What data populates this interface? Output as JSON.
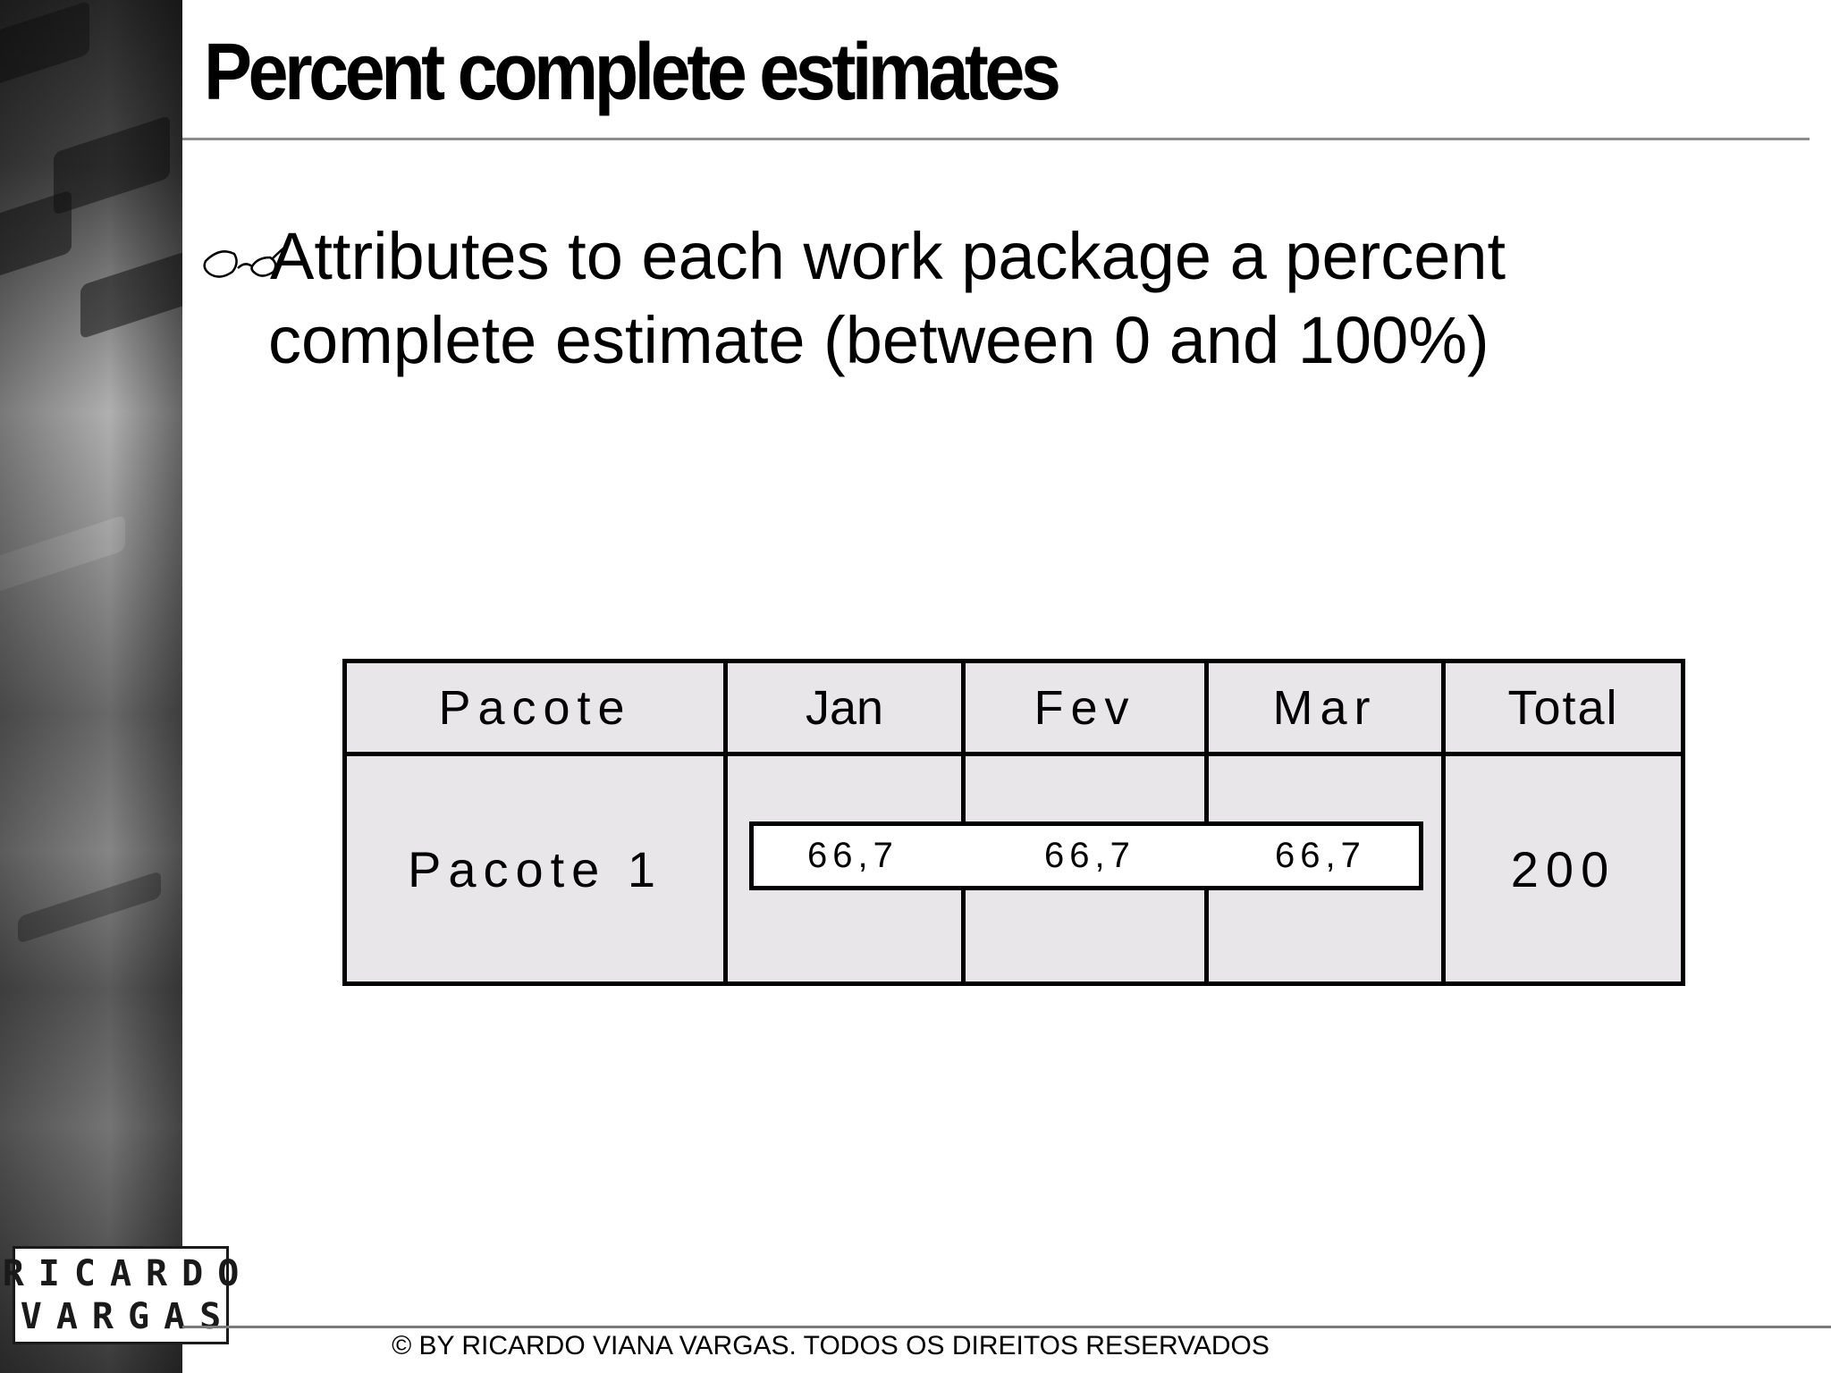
{
  "slide": {
    "title": "Percent complete estimates",
    "bullet_icon": "eyeglasses-icon",
    "bullet_line1": "Attributes to each work package a percent",
    "bullet_line2": "complete estimate (between 0 and 100%)",
    "footer": "© BY RICARDO VIANA VARGAS. TODOS OS DIREITOS RESERVADOS"
  },
  "logo": {
    "line1": "RICARDO",
    "line2": "VARGAS"
  },
  "table": {
    "headers": [
      "Pacote",
      "Jan",
      "Fev",
      "Mar",
      "Total"
    ],
    "rows": [
      {
        "package": "Pacote 1",
        "bar_values": [
          "66,7",
          "66,7",
          "66,7"
        ],
        "total": "200"
      }
    ]
  },
  "colors": {
    "cell_fill": "#e8e6e8",
    "rule_gray": "#8c8c8c",
    "text": "#000000"
  }
}
